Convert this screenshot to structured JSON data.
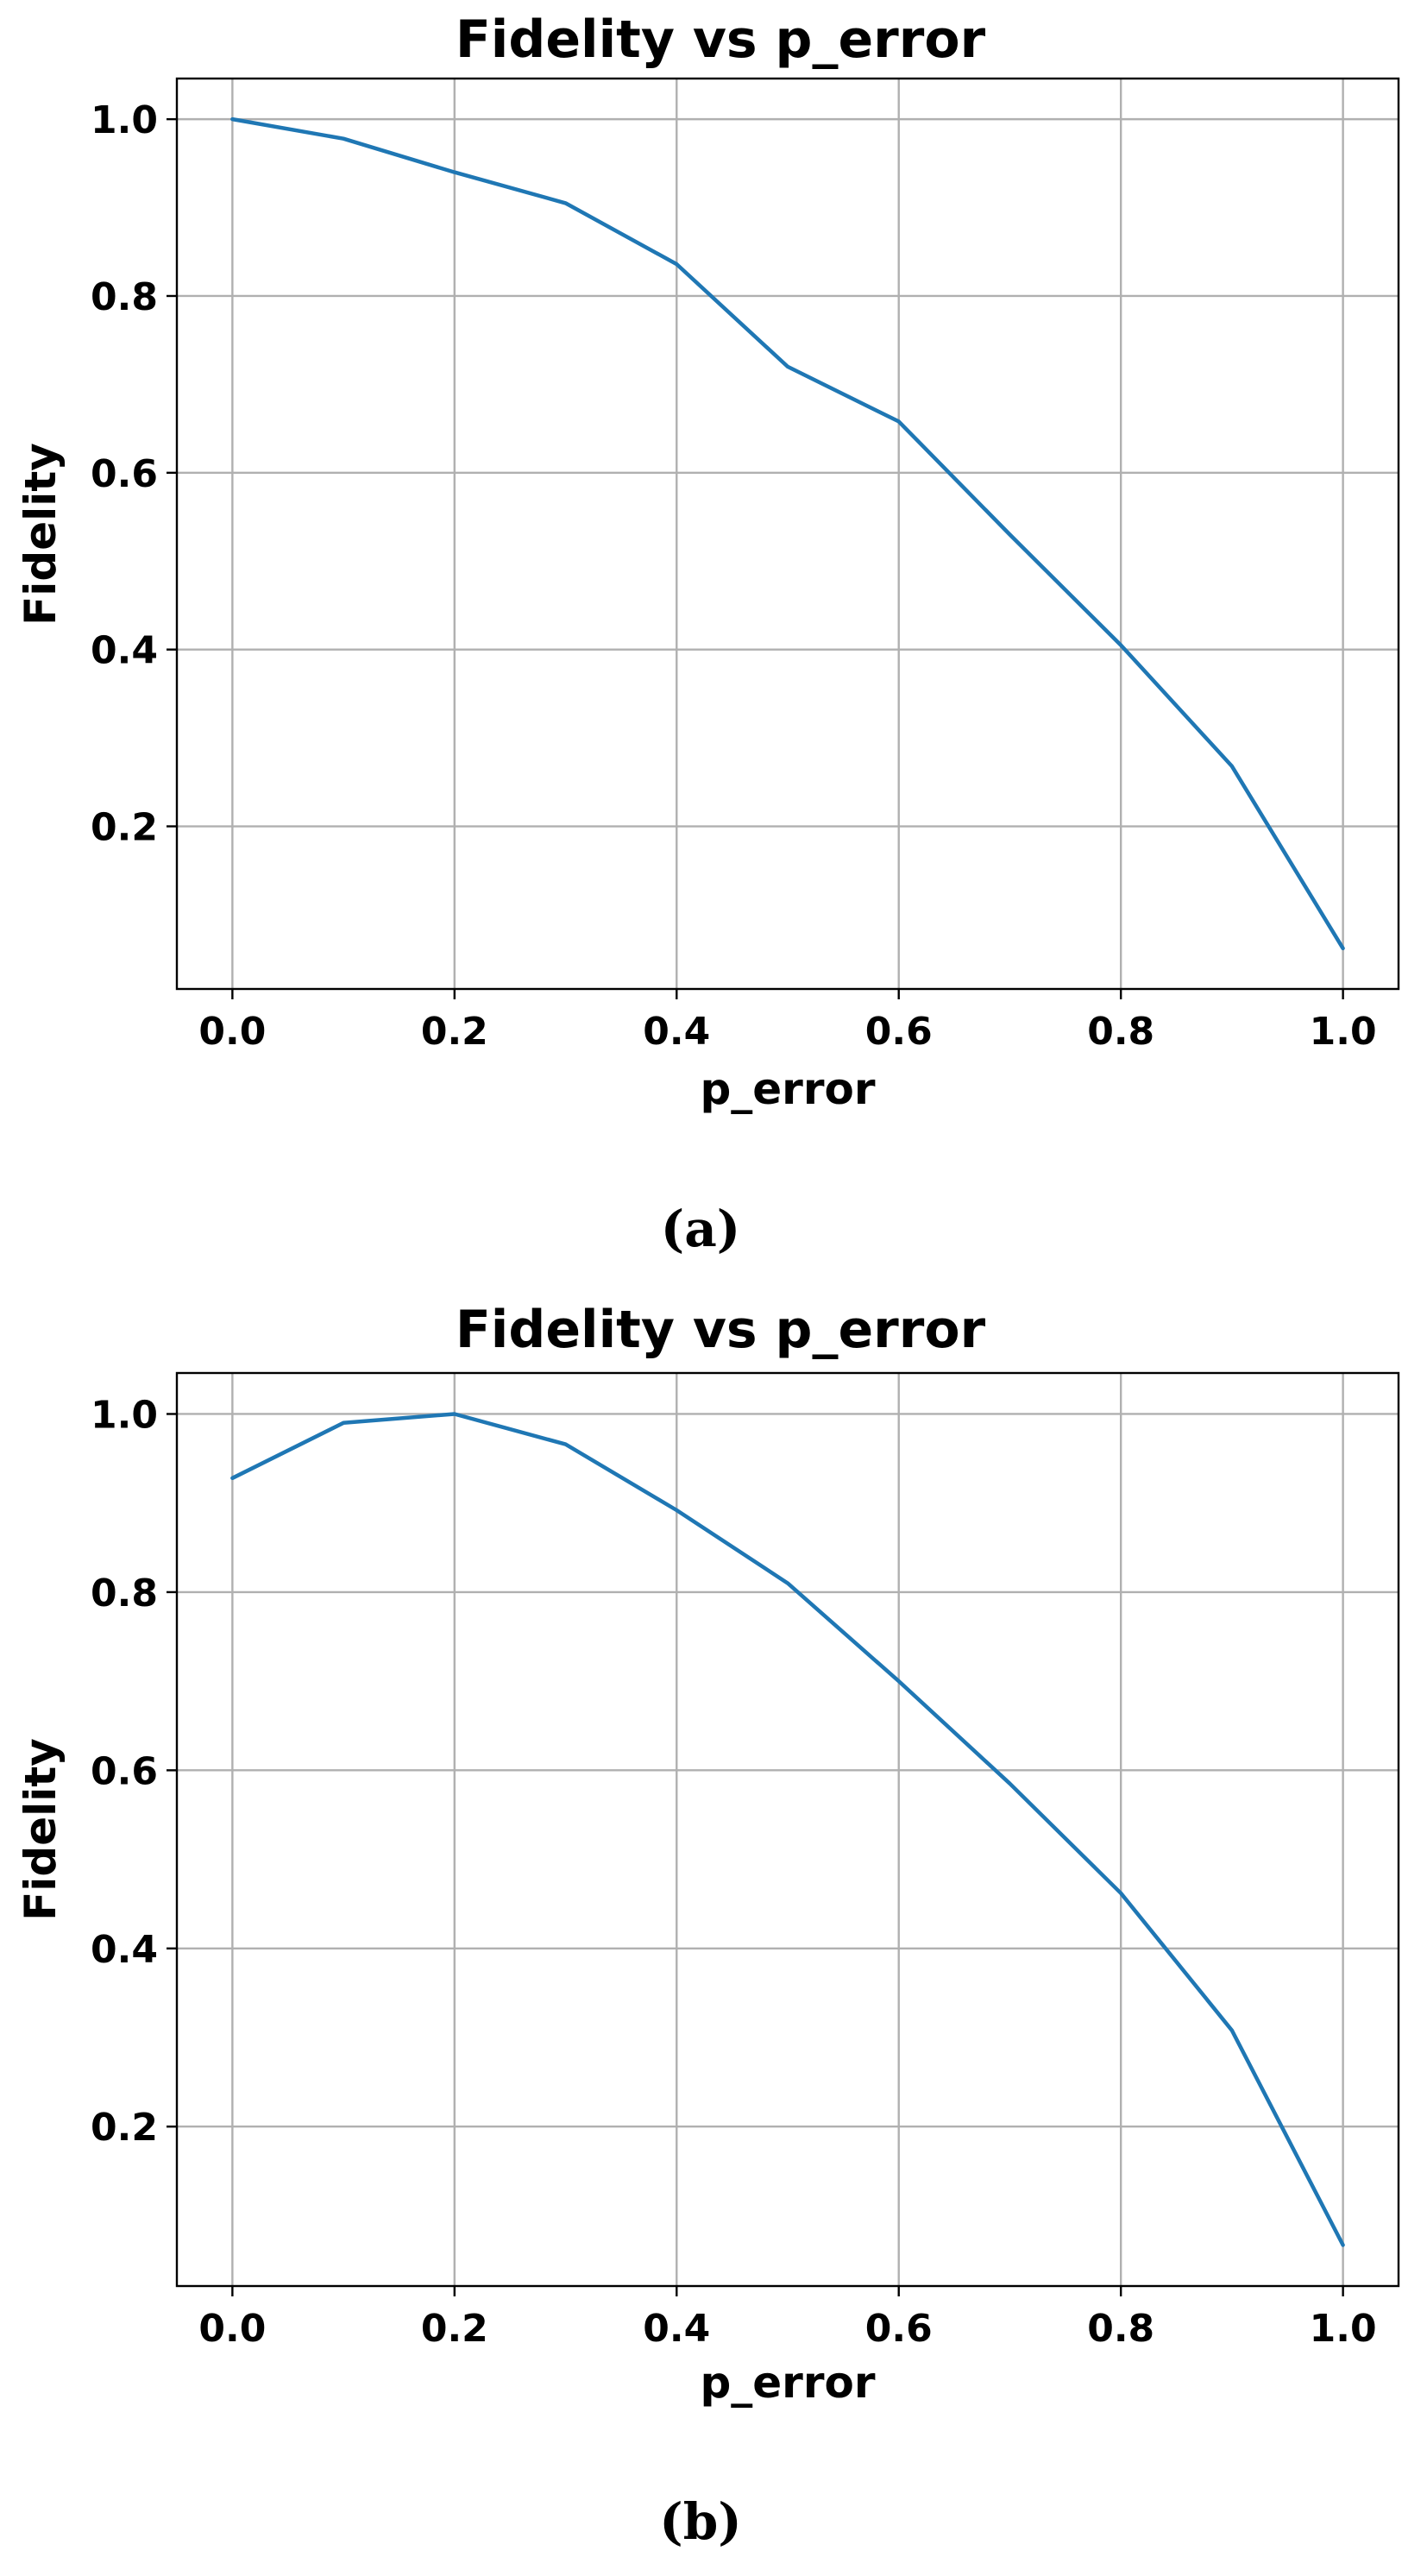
{
  "chart_data": [
    {
      "type": "line",
      "panel_label": "(a)",
      "title": "Fidelity vs p_error",
      "xlabel": "p_error",
      "ylabel": "Fidelity",
      "x": [
        0.0,
        0.1,
        0.2,
        0.3,
        0.4,
        0.5,
        0.6,
        0.7,
        0.8,
        0.9,
        1.0
      ],
      "series": [
        {
          "color": "#1f77b4",
          "values": [
            1.0,
            0.978,
            0.94,
            0.905,
            0.836,
            0.72,
            0.658,
            0.53,
            0.405,
            0.268,
            0.062
          ]
        }
      ],
      "xlim": [
        -0.05,
        1.05
      ],
      "ylim": [
        0.016,
        1.046
      ],
      "xticks": [
        0.0,
        0.2,
        0.4,
        0.6,
        0.8,
        1.0
      ],
      "xtick_labels": [
        "0.0",
        "0.2",
        "0.4",
        "0.6",
        "0.8",
        "1.0"
      ],
      "yticks": [
        0.2,
        0.4,
        0.6,
        0.8,
        1.0
      ],
      "ytick_labels": [
        "0.2",
        "0.4",
        "0.6",
        "0.8",
        "1.0"
      ],
      "grid": true,
      "legend": false
    },
    {
      "type": "line",
      "panel_label": "(b)",
      "title": "Fidelity vs p_error",
      "xlabel": "p_error",
      "ylabel": "Fidelity",
      "x": [
        0.0,
        0.1,
        0.2,
        0.3,
        0.4,
        0.5,
        0.6,
        0.7,
        0.8,
        0.9,
        1.0
      ],
      "series": [
        {
          "color": "#1f77b4",
          "values": [
            0.928,
            0.99,
            1.0,
            0.966,
            0.892,
            0.81,
            0.7,
            0.585,
            0.462,
            0.308,
            0.067
          ]
        }
      ],
      "xlim": [
        -0.05,
        1.05
      ],
      "ylim": [
        0.021,
        1.046
      ],
      "xticks": [
        0.0,
        0.2,
        0.4,
        0.6,
        0.8,
        1.0
      ],
      "xtick_labels": [
        "0.0",
        "0.2",
        "0.4",
        "0.6",
        "0.8",
        "1.0"
      ],
      "yticks": [
        0.2,
        0.4,
        0.6,
        0.8,
        1.0
      ],
      "ytick_labels": [
        "0.2",
        "0.4",
        "0.6",
        "0.8",
        "1.0"
      ],
      "grid": true,
      "legend": false
    }
  ]
}
